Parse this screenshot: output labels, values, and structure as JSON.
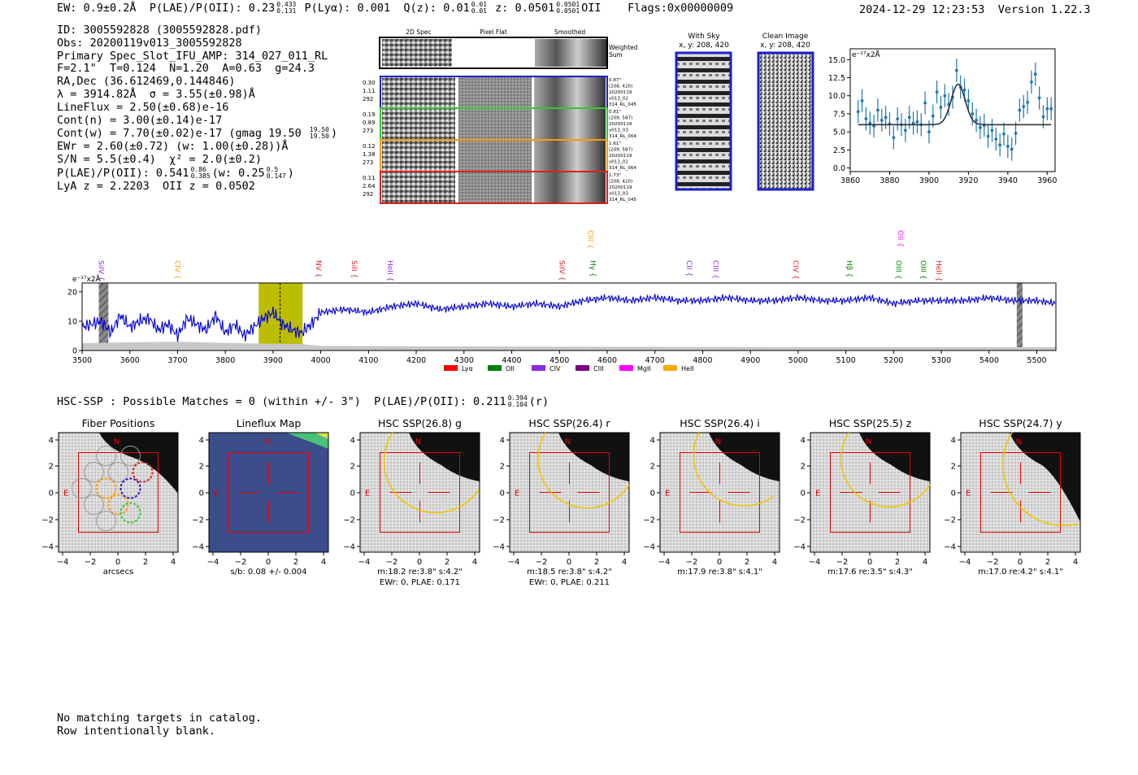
{
  "header": {
    "ew": "EW: 0.9±0.2Å",
    "plae_label": "P(LAE)/P(OII): 0.23",
    "plae_hi": "0.433",
    "plae_lo": "0.131",
    "plya": "P(Lyα): 0.001",
    "qz_label": "Q(z): 0.01",
    "qz_hi": "0.01",
    "qz_lo": "0.01",
    "z_label": "z: 0.0501",
    "z_hi": "0.0501",
    "z_lo": "0.0501",
    "z_line": "OII",
    "flags": "Flags:0x00000009",
    "datetime": "2024-12-29 12:23:53",
    "version": "Version 1.22.3"
  },
  "info": {
    "id": "ID: 3005592828 (3005592828.pdf)",
    "obs": "Obs: 20200119v013_3005592828",
    "primary": "Primary Spec_Slot_IFU_AMP: 314_027_011_RL",
    "params": "F=2.1\"  T=0.124  N=1.20  A=0.63  g=24.3",
    "radec": "RA,Dec (36.612469,0.144846)",
    "lambda": "λ = 3914.82Å  σ = 3.55(±0.98)Å",
    "lineflux": "LineFlux = 2.50(±0.68)e-16",
    "contn": "Cont(n) = 3.00(±0.14)e-17",
    "contw": "Cont(w) = 7.70(±0.02)e-17 (gmag 19.50",
    "contw_hi": "19.50",
    "contw_lo": "19.50",
    "contw_end": ")",
    "ewr": "EWr = 2.60(±0.72) (w: 1.00(±0.28))Å",
    "sn": "S/N = 5.5(±0.4)  χ² = 2.0(±0.2)",
    "plae": "P(LAE)/P(OII): 0.541",
    "plae_hi": "0.86",
    "plae_lo": "0.385",
    "plae_w": "(w: 0.25",
    "plae_w_hi": "0.5",
    "plae_w_lo": "0.147",
    "plae_w_end": ")",
    "lyaz": "LyA z = 2.2203  OII z = 0.0502"
  },
  "cutouts": {
    "col_headers": [
      "2D Spec",
      "Pixel Flat",
      "Smoothed"
    ],
    "weighted": [
      "Weighted",
      "Sum"
    ],
    "rows": [
      {
        "left": [
          "0.30",
          "1.11",
          "292"
        ],
        "right": [
          "0.87\"",
          "(208, 420)",
          "20200119",
          "v013_02",
          "314_RL_045"
        ],
        "color": "#1f1fcf"
      },
      {
        "left": [
          "0.19",
          "0.89",
          "273"
        ],
        "right": [
          "0.81\"",
          "(209, 587)",
          "20200119",
          "v013_03",
          "314_RL_064"
        ],
        "color": "#2ecc2e"
      },
      {
        "left": [
          "0.12",
          "1.38",
          "273"
        ],
        "right": [
          "1.61\"",
          "(209, 587)",
          "20200119",
          "v013_01",
          "314_RL_064"
        ],
        "color": "#ff9900"
      },
      {
        "left": [
          "0.11",
          "2.64",
          "292"
        ],
        "right": [
          "1.73\"",
          "(208, 420)",
          "20200119",
          "v013_03",
          "314_RL_045"
        ],
        "color": "#e02020"
      }
    ]
  },
  "sky": {
    "with_sky": [
      "With Sky",
      "x, y: 208, 420"
    ],
    "clean": [
      "Clean Image",
      "x, y: 208, 420"
    ]
  },
  "chart_data": [
    {
      "type": "scatter",
      "title": "",
      "unit_label": "e⁻¹⁷x2Å",
      "xlim": [
        3860,
        3964
      ],
      "ylim": [
        -0.5,
        16.5
      ],
      "xticks": [
        3860,
        3880,
        3900,
        3920,
        3940,
        3960
      ],
      "yticks": [
        0.0,
        2.5,
        5.0,
        7.5,
        10.0,
        12.5,
        15.0
      ],
      "ytick_labels": [
        "0.0",
        "2.5",
        "5.0",
        "7.5",
        "10.0",
        "12.5",
        "15.0"
      ],
      "x": [
        3864,
        3866,
        3868,
        3870,
        3872,
        3874,
        3876,
        3878,
        3880,
        3882,
        3884,
        3886,
        3888,
        3890,
        3892,
        3894,
        3896,
        3898,
        3900,
        3902,
        3904,
        3906,
        3908,
        3910,
        3912,
        3914,
        3916,
        3918,
        3920,
        3922,
        3924,
        3926,
        3928,
        3930,
        3932,
        3934,
        3936,
        3938,
        3940,
        3942,
        3944,
        3946,
        3948,
        3950,
        3952,
        3954,
        3956,
        3958,
        3960,
        3962
      ],
      "y": [
        7.8,
        9.3,
        6.8,
        6.2,
        5.8,
        8.0,
        6.6,
        7.0,
        6.1,
        4.2,
        6.8,
        6.0,
        5.2,
        7.0,
        6.2,
        6.4,
        6.0,
        9.0,
        5.0,
        7.2,
        10.5,
        8.4,
        10.0,
        8.8,
        9.8,
        13.5,
        11.2,
        10.8,
        9.3,
        7.5,
        6.6,
        5.6,
        5.9,
        4.4,
        5.2,
        4.0,
        3.2,
        4.7,
        3.0,
        2.6,
        4.8,
        8.0,
        8.5,
        9.1,
        11.9,
        13.0,
        9.7,
        7.1,
        8.2,
        8.2
      ],
      "yerr": 1.6,
      "model": {
        "continuum": 6.0,
        "amplitude": 5.6,
        "center": 3914.8,
        "sigma": 3.55
      }
    },
    {
      "type": "line",
      "unit_label": "e⁻¹⁷x2Å",
      "xlim": [
        3500,
        5540
      ],
      "ylim": [
        0,
        23
      ],
      "xticks": [
        3500,
        3600,
        3700,
        3800,
        3900,
        4000,
        4100,
        4200,
        4300,
        4400,
        4500,
        4600,
        4700,
        4800,
        4900,
        5000,
        5100,
        5200,
        5300,
        5400,
        5500
      ],
      "yticks": [
        0,
        10,
        20
      ],
      "series": [
        {
          "name": "flux",
          "color": "#0000dd",
          "x": [
            3500,
            3520,
            3540,
            3560,
            3580,
            3600,
            3620,
            3640,
            3660,
            3680,
            3700,
            3720,
            3740,
            3760,
            3780,
            3800,
            3820,
            3840,
            3860,
            3880,
            3900,
            3920,
            3940,
            3960,
            3980,
            4000,
            4050,
            4100,
            4150,
            4200,
            4250,
            4300,
            4350,
            4400,
            4450,
            4500,
            4550,
            4600,
            4650,
            4700,
            4750,
            4800,
            4850,
            4900,
            4950,
            5000,
            5050,
            5100,
            5150,
            5200,
            5250,
            5300,
            5350,
            5400,
            5450,
            5500,
            5540
          ],
          "y": [
            8,
            9,
            10,
            6,
            12,
            8,
            10,
            11,
            7,
            9,
            5,
            11,
            9,
            7,
            12,
            6,
            9,
            5,
            8,
            11,
            13,
            9,
            7,
            6,
            9,
            13,
            14,
            13,
            15,
            16,
            14,
            15,
            16,
            15,
            16,
            15,
            17,
            18,
            17,
            18,
            17,
            17,
            18,
            17,
            17,
            18,
            17,
            17,
            18,
            16,
            17,
            17,
            17,
            18,
            17,
            17,
            16
          ]
        },
        {
          "name": "noise",
          "color": "#bbbbbb",
          "x": [
            3500,
            3600,
            3700,
            3800,
            3900,
            3960,
            4000,
            4200,
            4500,
            5000,
            5540
          ],
          "y": [
            2.5,
            2.8,
            3.0,
            2.6,
            2.3,
            2.2,
            1.6,
            1.4,
            1.3,
            1.2,
            1.1
          ]
        }
      ],
      "line_markers": [
        {
          "name": "SiIV",
          "x": 3535,
          "color": "#8a2be2"
        },
        {
          "name": "CIV",
          "x": 3695,
          "color": "#ff9900"
        },
        {
          "name": "NV",
          "x": 3990,
          "color": "#e02020"
        },
        {
          "name": "SiII",
          "x": 4065,
          "color": "#e02020"
        },
        {
          "name": "HeII",
          "x": 4140,
          "color": "#8a2be2"
        },
        {
          "name": "SiIV",
          "x": 4500,
          "color": "#e02020"
        },
        {
          "name": "CIII",
          "x": 4560,
          "color": "#ff9900"
        },
        {
          "name": "Hγ",
          "x": 4565,
          "color": "#008000"
        },
        {
          "name": "CII",
          "x": 4767,
          "color": "#8a2be2"
        },
        {
          "name": "CIII",
          "x": 4822,
          "color": "#8a2be2"
        },
        {
          "name": "CIV",
          "x": 4990,
          "color": "#e02020"
        },
        {
          "name": "Hβ",
          "x": 5102,
          "color": "#008000"
        },
        {
          "name": "OII",
          "x": 5210,
          "color": "#ff00ff"
        },
        {
          "name": "OIII",
          "x": 5205,
          "color": "#008000"
        },
        {
          "name": "OIII",
          "x": 5257,
          "color": "#008000"
        },
        {
          "name": "HeII",
          "x": 5290,
          "color": "#e02020"
        }
      ],
      "highlight": {
        "from": 3870,
        "to": 3962,
        "center": 3914.8
      },
      "gaps": [
        {
          "from": 3535,
          "to": 3555
        },
        {
          "from": 5458,
          "to": 5470
        }
      ],
      "legend": [
        {
          "label": "Lyα",
          "color": "#ff0000"
        },
        {
          "label": "OII",
          "color": "#008000"
        },
        {
          "label": "CIV",
          "color": "#8a2be2"
        },
        {
          "label": "CIII",
          "color": "#800080"
        },
        {
          "label": "MgII",
          "color": "#ff00ff"
        },
        {
          "label": "HeII",
          "color": "#ffa500"
        }
      ]
    }
  ],
  "hsc": {
    "title": "HSC-SSP : Possible Matches = 0 (within +/- 3\")  P(LAE)/P(OII): 0.211",
    "title_hi": "0.394",
    "title_lo": "0.104",
    "title_end": "(r)",
    "ticks_x": [
      "−4",
      "−2",
      "0",
      "2",
      "4"
    ],
    "ticks_y": [
      "4",
      "2",
      "0",
      "−2",
      "−4"
    ],
    "n_label": "N",
    "e_label": "E",
    "panels": [
      {
        "title": "Fiber Positions",
        "cap1": "arcsecs",
        "cap2": ""
      },
      {
        "title": "Lineflux Map",
        "cap1": "s/b: 0.08 +/- 0.004",
        "cap2": ""
      },
      {
        "title": "HSC SSP(26.8) g",
        "cap1": "m:18.2  re:3.8\"  s:4.2\"",
        "cap2": "EWr: 0, PLAE: 0.171"
      },
      {
        "title": "HSC SSP(26.4) r",
        "cap1": "m:18.5  re:3.8\"  s:4.2\"",
        "cap2": "EWr: 0, PLAE: 0.211"
      },
      {
        "title": "HSC SSP(26.4) i",
        "cap1": "m:17.9  re:3.8\"  s:4.1\"",
        "cap2": ""
      },
      {
        "title": "HSC SSP(25.5) z",
        "cap1": "m:17.6  re:3.5\"  s:4.3\"",
        "cap2": ""
      },
      {
        "title": "HSC SSP(24.7) y",
        "cap1": "m:17.0  re:4.2\"  s:4.1\"",
        "cap2": ""
      }
    ]
  },
  "footer": {
    "line1": "No matching targets in catalog.",
    "line2": "Row intentionally blank."
  }
}
